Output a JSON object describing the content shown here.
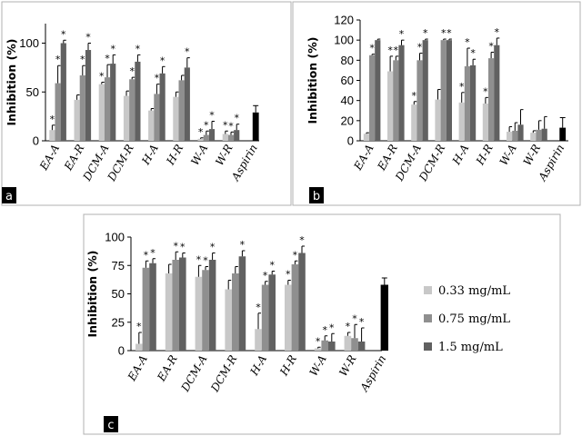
{
  "colors": {
    "series": [
      "#c8c8c8",
      "#8f8f8f",
      "#616161"
    ],
    "aspirin": "#000000",
    "error_bar": "#000000",
    "panel_tag_bg": "#000000",
    "panel_tag_text": "#ffffff",
    "frame": "#b0b0b0"
  },
  "legend": {
    "items": [
      "0.33 mg/mL",
      "0.75 mg/mL",
      "1.5 mg/mL"
    ],
    "placement": "right of panel c"
  },
  "chart_data": [
    {
      "panel": "a",
      "type": "bar",
      "ylabel": "Inhibition (%)",
      "ylim": [
        0,
        120
      ],
      "yticks": [
        "0",
        "50",
        "100"
      ],
      "ytick_values": [
        0,
        50,
        100
      ],
      "categories": [
        "EA-A",
        "EA-R",
        "DCM-A",
        "DCM-R",
        "H-A",
        "H-R",
        "W-A",
        "W-R",
        "Aspirin"
      ],
      "series": [
        {
          "name": "0.33 mg/mL",
          "values": [
            11,
            42,
            58,
            46,
            31,
            45,
            2,
            7,
            null
          ],
          "errors": [
            5,
            5,
            2,
            5,
            2,
            5,
            1,
            3,
            null
          ]
        },
        {
          "name": "0.75 mg/mL",
          "values": [
            59,
            67,
            65,
            63,
            48,
            62,
            6,
            6,
            null
          ],
          "errors": [
            18,
            10,
            13,
            2,
            10,
            5,
            4,
            3,
            null
          ]
        },
        {
          "name": "1.5 mg/mL",
          "values": [
            100,
            93,
            79,
            81,
            69,
            75,
            12,
            11,
            null
          ],
          "errors": [
            3,
            7,
            9,
            7,
            7,
            10,
            8,
            6,
            null
          ]
        }
      ],
      "aspirin": {
        "value": 29,
        "error": 7
      },
      "significance": [
        [
          "*",
          "*",
          "*"
        ],
        [
          "",
          "*",
          "*"
        ],
        [
          "*",
          "*",
          "*"
        ],
        [
          "",
          "*",
          "*"
        ],
        [
          "",
          "*",
          "*"
        ],
        [
          "",
          "",
          "*"
        ],
        [
          "*",
          "*",
          "*"
        ],
        [
          "*",
          "*",
          "*"
        ],
        []
      ],
      "grid": false
    },
    {
      "panel": "b",
      "type": "bar",
      "ylabel": "Inhibition (%)",
      "ylim": [
        0,
        120
      ],
      "yticks": [
        "0",
        "20",
        "40",
        "60",
        "80",
        "100",
        "120"
      ],
      "ytick_values": [
        0,
        20,
        40,
        60,
        80,
        100,
        120
      ],
      "categories": [
        "EA-A",
        "EA-R",
        "DCM-A",
        "DCM-R",
        "H-A",
        "H-R",
        "W-A",
        "W-R",
        "Aspirin"
      ],
      "series": [
        {
          "name": "0.33 mg/mL",
          "values": [
            7,
            69,
            36,
            41,
            38,
            37,
            9,
            8,
            null
          ],
          "errors": [
            1,
            15,
            3,
            10,
            10,
            6,
            5,
            2,
            null
          ]
        },
        {
          "name": "0.75 mg/mL",
          "values": [
            85,
            80,
            80,
            100,
            74,
            82,
            10,
            11,
            null
          ],
          "errors": [
            1,
            4,
            7,
            1,
            18,
            6,
            8,
            9,
            null
          ]
        },
        {
          "name": "1.5 mg/mL",
          "values": [
            100,
            95,
            100,
            100,
            75,
            95,
            16,
            12,
            null
          ],
          "errors": [
            1,
            5,
            1,
            1,
            6,
            7,
            15,
            12,
            null
          ]
        }
      ],
      "aspirin": {
        "value": 13,
        "error": 10
      },
      "significance": [
        [
          "",
          "*",
          ""
        ],
        [
          "*",
          "*",
          "*"
        ],
        [
          "*",
          "*",
          "*"
        ],
        [
          "",
          "*",
          "*"
        ],
        [
          "*",
          "*",
          "*"
        ],
        [
          "*",
          "*",
          "*"
        ],
        [],
        [],
        []
      ],
      "grid": false
    },
    {
      "panel": "c",
      "type": "bar",
      "ylabel": "Inhibition (%)",
      "ylim": [
        0,
        100
      ],
      "yticks": [
        "0",
        "25",
        "50",
        "75",
        "100"
      ],
      "ytick_values": [
        0,
        25,
        50,
        75,
        100
      ],
      "categories": [
        "EA-A",
        "EA-R",
        "DCM-A",
        "DCM-R",
        "H-A",
        "H-R",
        "W-A",
        "W-R",
        "Aspirin"
      ],
      "series": [
        {
          "name": "0.33 mg/mL",
          "values": [
            6,
            68,
            65,
            54,
            19,
            58,
            2,
            13,
            null
          ],
          "errors": [
            10,
            8,
            10,
            8,
            14,
            4,
            1,
            3,
            null
          ]
        },
        {
          "name": "0.75 mg/mL",
          "values": [
            73,
            80,
            71,
            68,
            58,
            76,
            9,
            11,
            null
          ],
          "errors": [
            6,
            7,
            3,
            6,
            3,
            3,
            4,
            12,
            null
          ]
        },
        {
          "name": "1.5 mg/mL",
          "values": [
            77,
            82,
            80,
            83,
            67,
            86,
            8,
            8,
            null
          ],
          "errors": [
            4,
            4,
            6,
            5,
            3,
            6,
            7,
            12,
            null
          ]
        }
      ],
      "aspirin": {
        "value": 58,
        "error": 6
      },
      "significance": [
        [
          "*",
          "*",
          "*"
        ],
        [
          "",
          "*",
          "*"
        ],
        [
          "*",
          "*",
          "*"
        ],
        [
          "",
          "",
          "*"
        ],
        [
          "*",
          "*",
          "*"
        ],
        [
          "*",
          "*",
          "*"
        ],
        [
          "*",
          "*",
          "*"
        ],
        [
          "*",
          "*",
          "*"
        ],
        []
      ],
      "grid": false
    }
  ]
}
